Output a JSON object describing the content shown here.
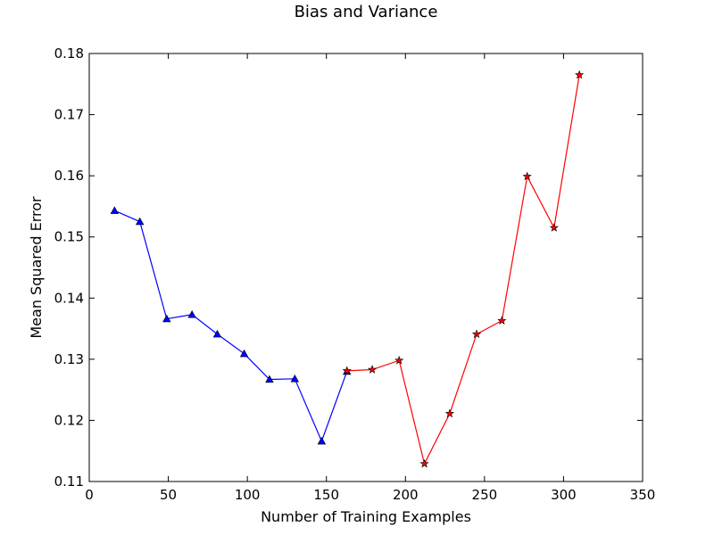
{
  "chart_data": {
    "type": "line",
    "title": "Bias and Variance",
    "xlabel": "Number of Training Examples",
    "ylabel": "Mean Squared Error",
    "xlim": [
      0,
      350
    ],
    "ylim": [
      0.11,
      0.18
    ],
    "xticks": [
      0,
      50,
      100,
      150,
      200,
      250,
      300,
      350
    ],
    "yticks": [
      0.11,
      0.12,
      0.13,
      0.14,
      0.15,
      0.16,
      0.17,
      0.18
    ],
    "xtick_labels": [
      "0",
      "50",
      "100",
      "150",
      "200",
      "250",
      "300",
      "350"
    ],
    "ytick_labels": [
      "0.11",
      "0.12",
      "0.13",
      "0.14",
      "0.15",
      "0.16",
      "0.17",
      "0.18"
    ],
    "grid": false,
    "series": [
      {
        "color": "#0000ff",
        "marker": "triangle",
        "x": [
          16,
          32,
          49,
          65,
          81,
          98,
          114,
          130,
          147,
          163
        ],
        "y": [
          0.1543,
          0.1525,
          0.1366,
          0.1373,
          0.1341,
          0.1309,
          0.1267,
          0.1268,
          0.1166,
          0.128
        ]
      },
      {
        "color": "#ff0000",
        "marker": "star",
        "x": [
          163,
          179,
          196,
          212,
          228,
          245,
          261,
          277,
          294,
          310
        ],
        "y": [
          0.1281,
          0.1283,
          0.1298,
          0.1129,
          0.1211,
          0.1341,
          0.1363,
          0.1599,
          0.1515,
          0.1765
        ]
      }
    ]
  }
}
